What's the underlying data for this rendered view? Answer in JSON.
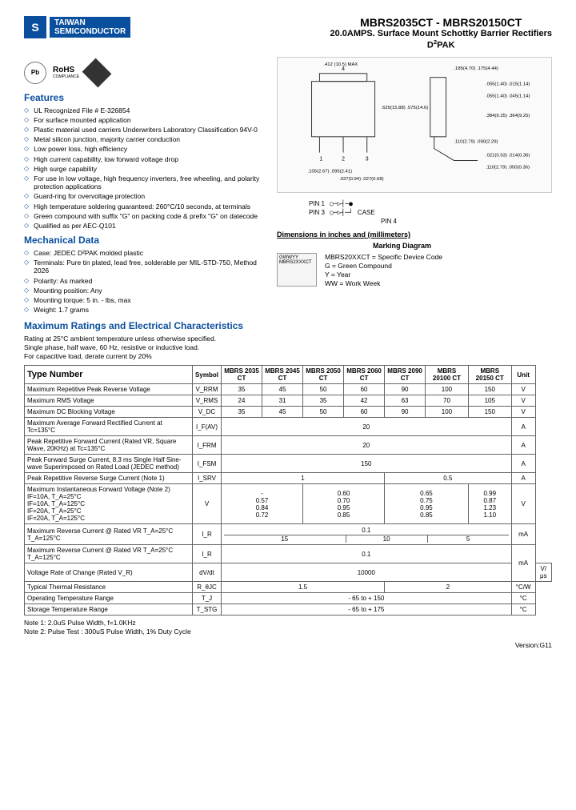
{
  "brand": {
    "logo_letter": "S",
    "name_line1": "TAIWAN",
    "name_line2": "SEMICONDUCTOR"
  },
  "title": {
    "main": "MBRS2035CT - MBRS20150CT",
    "sub": "20.0AMPS. Surface Mount Schottky Barrier Rectifiers",
    "pkg": "D²PAK"
  },
  "badges": {
    "pb": "Pb",
    "rohs": "RoHS",
    "rohs_sub": "COMPLIANCE"
  },
  "features_heading": "Features",
  "features": [
    "UL Recognized File # E-326854",
    "For surface mounted application",
    "Plastic material used carriers Underwriters Laboratory Classification 94V-0",
    "Metal silicon junction, majority carrier conduction",
    "Low power loss, high efficiency",
    "High current capability, low forward voltage drop",
    "High surge capability",
    "For use in low voltage, high frequency inverters, free wheeling, and polarity protection applications",
    "Guard-ring for overvoltage protection",
    "High temperature soldering guaranteed: 260°C/10 seconds, at terminals",
    "Green compound with suffix \"G\" on packing code & prefix \"G\" on datecode",
    "Qualified as per AEC-Q101"
  ],
  "mechanical_heading": "Mechanical Data",
  "mechanical": [
    "Case: JEDEC D²PAK molded plastic",
    "Terminals: Pure tin plated, lead free, solderable per MIL-STD-750, Method 2026",
    "Polarity: As marked",
    "Mounting position: Any",
    "Mounting torque: 5 in. - lbs, max",
    "Weight: 1.7 grams"
  ],
  "dimensions_heading": "Dimensions in inches and (millimeters)",
  "dimensions_text": "Package outline drawing",
  "dim_labels": {
    "a": ".412 (10.5) MAX",
    "b": ".625(15.88) .575(14.6)",
    "c": ".185(4.70) .175(4.44)",
    "d": ".055(1.40) .015(1.14)",
    "e": ".055(1.40) .045(1.14)",
    "f": ".384(9.25) .364(9.25)",
    "g": ".110(2.79) .090(2.29)",
    "h": ".021(0.53) .014(0.36)",
    "i": ".110(2.79) .050(0.36)",
    "j": ".105(2.67) .095(2.41)",
    "k": ".037(0.94) .027(0.68)"
  },
  "pins": {
    "pin1": "PIN 1",
    "pin3": "PIN 3",
    "case": "CASE",
    "pin4": "PIN 4"
  },
  "marking_heading": "Marking Diagram",
  "marking_chip": "GWWYY\nMBRS2XXXCT",
  "marking": [
    "MBRS20XXCT = Specific Device Code",
    "G              = Green Compound",
    "Y              = Year",
    "WW           = Work Week"
  ],
  "ratings_heading": "Maximum Ratings and Electrical Characteristics",
  "ratings_desc": [
    "Rating at 25°C ambient temperature unless otherwise specified.",
    "Single phase, half wave, 60 Hz, resistive or inductive load.",
    "For capacitive load, derate current by 20%"
  ],
  "table": {
    "type_number_label": "Type Number",
    "columns": [
      "Symbol",
      "MBRS 2035 CT",
      "MBRS 2045 CT",
      "MBRS 2050 CT",
      "MBRS 2060 CT",
      "MBRS 2090 CT",
      "MBRS 20100 CT",
      "MBRS 20150 CT",
      "Unit"
    ],
    "rows": [
      {
        "param": "Maximum Repetitive Peak Reverse Voltage",
        "sym": "V_RRM",
        "vals": [
          "35",
          "45",
          "50",
          "60",
          "90",
          "100",
          "150"
        ],
        "unit": "V"
      },
      {
        "param": "Maximum RMS Voltage",
        "sym": "V_RMS",
        "vals": [
          "24",
          "31",
          "35",
          "42",
          "63",
          "70",
          "105"
        ],
        "unit": "V"
      },
      {
        "param": "Maximum DC Blocking Voltage",
        "sym": "V_DC",
        "vals": [
          "35",
          "45",
          "50",
          "60",
          "90",
          "100",
          "150"
        ],
        "unit": "V"
      },
      {
        "param": "Maximum Average Forward Rectified Current at Tc=135°C",
        "sym": "I_F(AV)",
        "span": "20",
        "unit": "A"
      },
      {
        "param": "Peak Repetitive Forward Current (Rated VR, Square Wave, 20KHz) at Tc=135°C",
        "sym": "I_FRM",
        "span": "20",
        "unit": "A"
      },
      {
        "param": "Peak Forward Surge Current, 8.3 ms Single Half Sine-wave Superimposed on Rated Load (JEDEC method)",
        "sym": "I_FSM",
        "span": "150",
        "unit": "A"
      },
      {
        "param": "Peak Repetitive Reverse Surge Current (Note 1)",
        "sym": "I_SRV",
        "span2": [
          "1",
          "0.5"
        ],
        "unit": "A"
      },
      {
        "param": "Maximum Instantaneous Forward Voltage (Note 2)\nIF=10A, T_A=25°C\nIF=10A, T_A=125°C\nIF=20A, T_A=25°C\nIF=20A, T_A=125°C",
        "sym": "V",
        "multi": [
          [
            "-",
            "0.57",
            "0.84",
            "0.72"
          ],
          [
            "0.60",
            "0.70",
            "0.95",
            "0.85"
          ],
          [
            "0.65",
            "0.75",
            "0.95",
            "0.85"
          ],
          [
            "0.99",
            "0.87",
            "1.23",
            "1.10"
          ]
        ],
        "unit": "V"
      },
      {
        "param": "Maximum Reverse Current @ Rated VR   T_A=25°C\n                                                        T_A=125°C",
        "sym": "I_R",
        "dual": [
          [
            "0.1"
          ],
          [
            "15",
            "10",
            "5"
          ]
        ],
        "unit": "mA"
      },
      {
        "param": "Voltage Rate of Change (Rated V_R)",
        "sym": "dV/dt",
        "span": "10000",
        "unit": "V/μs"
      },
      {
        "param": "Typical Thermal Resistance",
        "sym": "R_θJC",
        "span2": [
          "1.5",
          "2"
        ],
        "unit": "°C/W"
      },
      {
        "param": "Operating Temperature Range",
        "sym": "T_J",
        "span": "- 65 to + 150",
        "unit": "°C"
      },
      {
        "param": "Storage Temperature Range",
        "sym": "T_STG",
        "span": "- 65 to + 175",
        "unit": "°C"
      }
    ]
  },
  "notes": [
    "Note 1: 2.0uS Pulse Width, f=1.0KHz",
    "Note 2: Pulse Test : 300uS Pulse Width, 1% Duty Cycle"
  ],
  "version": "Version:G11",
  "colors": {
    "brand": "#0a4f9e",
    "border": "#666666",
    "text": "#000000",
    "bg": "#ffffff"
  }
}
